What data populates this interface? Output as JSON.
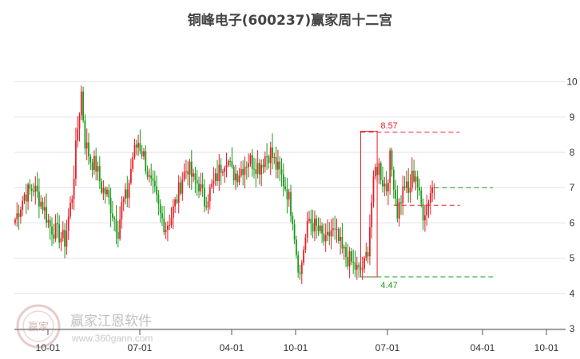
{
  "chart_data": {
    "type": "candlestick",
    "title": "铜峰电子(600237)赢家周十二宫",
    "y_ticks": [
      3,
      4,
      5,
      6,
      7,
      8,
      9,
      10
    ],
    "ylim": [
      3,
      10.5
    ],
    "x_ticks": [
      "10-01",
      "07-01",
      "04-01",
      "10-01",
      "07-01",
      "04-01",
      "10-01"
    ],
    "grid": "horizontal",
    "up_color": "#e8202a",
    "down_color": "#1a9a1a",
    "anchors": [
      [
        0,
        6.1
      ],
      [
        5,
        6.8
      ],
      [
        10,
        7.0
      ],
      [
        15,
        6.5
      ],
      [
        19,
        5.9
      ],
      [
        23,
        5.7
      ],
      [
        27,
        5.5
      ],
      [
        31,
        6.8
      ],
      [
        34,
        8.7
      ],
      [
        36,
        9.7
      ],
      [
        38,
        8.3
      ],
      [
        41,
        7.8
      ],
      [
        44,
        7.6
      ],
      [
        47,
        7.0
      ],
      [
        50,
        6.8
      ],
      [
        53,
        6.3
      ],
      [
        56,
        5.8
      ],
      [
        58,
        6.5
      ],
      [
        61,
        6.8
      ],
      [
        64,
        7.9
      ],
      [
        67,
        8.3
      ],
      [
        70,
        7.9
      ],
      [
        73,
        7.2
      ],
      [
        76,
        6.8
      ],
      [
        79,
        6.2
      ],
      [
        82,
        5.9
      ],
      [
        85,
        6.2
      ],
      [
        88,
        6.7
      ],
      [
        91,
        7.3
      ],
      [
        94,
        7.6
      ],
      [
        97,
        7.2
      ],
      [
        100,
        7.1
      ],
      [
        103,
        6.6
      ],
      [
        106,
        6.9
      ],
      [
        109,
        7.2
      ],
      [
        112,
        7.6
      ],
      [
        115,
        7.9
      ],
      [
        118,
        7.4
      ],
      [
        121,
        7.4
      ],
      [
        124,
        7.6
      ],
      [
        127,
        7.8
      ],
      [
        130,
        7.7
      ],
      [
        133,
        7.6
      ],
      [
        136,
        7.9
      ],
      [
        139,
        8.0
      ],
      [
        142,
        7.6
      ],
      [
        145,
        7.3
      ],
      [
        148,
        6.9
      ],
      [
        151,
        6.2
      ],
      [
        153,
        5.2
      ],
      [
        155,
        4.5
      ],
      [
        157,
        5.3
      ],
      [
        160,
        6.1
      ],
      [
        163,
        5.9
      ],
      [
        166,
        5.7
      ],
      [
        169,
        5.4
      ],
      [
        172,
        5.8
      ],
      [
        175,
        5.6
      ],
      [
        178,
        5.2
      ],
      [
        181,
        5.0
      ],
      [
        184,
        4.8
      ],
      [
        187,
        4.6
      ],
      [
        190,
        4.8
      ],
      [
        192,
        5.3
      ],
      [
        194,
        6.6
      ],
      [
        196,
        7.5
      ],
      [
        198,
        7.6
      ],
      [
        200,
        7.2
      ],
      [
        202,
        7.0
      ],
      [
        204,
        7.8
      ],
      [
        206,
        7.2
      ],
      [
        208,
        6.3
      ],
      [
        210,
        6.7
      ],
      [
        212,
        7.1
      ],
      [
        214,
        6.8
      ],
      [
        216,
        7.3
      ],
      [
        218,
        7.4
      ],
      [
        220,
        6.7
      ],
      [
        222,
        6.3
      ],
      [
        224,
        6.5
      ],
      [
        226,
        6.9
      ],
      [
        228,
        7.1
      ]
    ],
    "band": {
      "start": 188,
      "end": 197,
      "high": 8.6,
      "low": 4.47
    },
    "levels": [
      {
        "value": 8.57,
        "label": "8.57",
        "color": "#e8202a",
        "from": 188,
        "to": 242
      },
      {
        "value": 6.5,
        "label": "",
        "color": "#e8202a",
        "from": 206,
        "to": 242
      },
      {
        "value": 4.47,
        "label": "4.47",
        "color": "#1a9a1a",
        "from": 188,
        "to": 260
      },
      {
        "value": 7.0,
        "label": "",
        "color": "#1a9a1a",
        "from": 228,
        "to": 260
      }
    ]
  },
  "watermark": {
    "logo_text": "赢家",
    "brand": "赢家江恩软件",
    "url": "www.360gann.com"
  }
}
